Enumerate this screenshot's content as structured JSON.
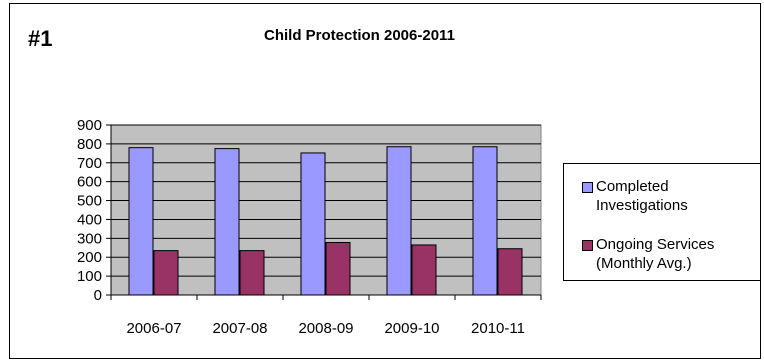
{
  "page_number": "#1",
  "chart_data": {
    "type": "bar",
    "title": "Child Protection 2006-2011",
    "xlabel": "",
    "ylabel": "",
    "ylim": [
      0,
      900
    ],
    "yticks": [
      "0",
      "100",
      "200",
      "300",
      "400",
      "500",
      "600",
      "700",
      "800",
      "900"
    ],
    "grid": true,
    "legend_position": "right",
    "categories": [
      "2006-07",
      "2007-08",
      "2008-09",
      "2009-10",
      "2010-11"
    ],
    "series": [
      {
        "name": "Completed Investigations",
        "values": [
          780,
          775,
          752,
          785,
          785
        ],
        "color": "#9999ff"
      },
      {
        "name": "Ongoing Services (Monthly Avg.)",
        "values": [
          235,
          235,
          278,
          265,
          245
        ],
        "color": "#993366"
      }
    ],
    "plot_background": "#c0c0c0"
  },
  "legend": {
    "items": [
      {
        "line1": "Completed",
        "line2": "Investigations",
        "color": "#9999ff"
      },
      {
        "line1": "Ongoing Services",
        "line2": "(Monthly Avg.)",
        "color": "#993366"
      }
    ]
  }
}
